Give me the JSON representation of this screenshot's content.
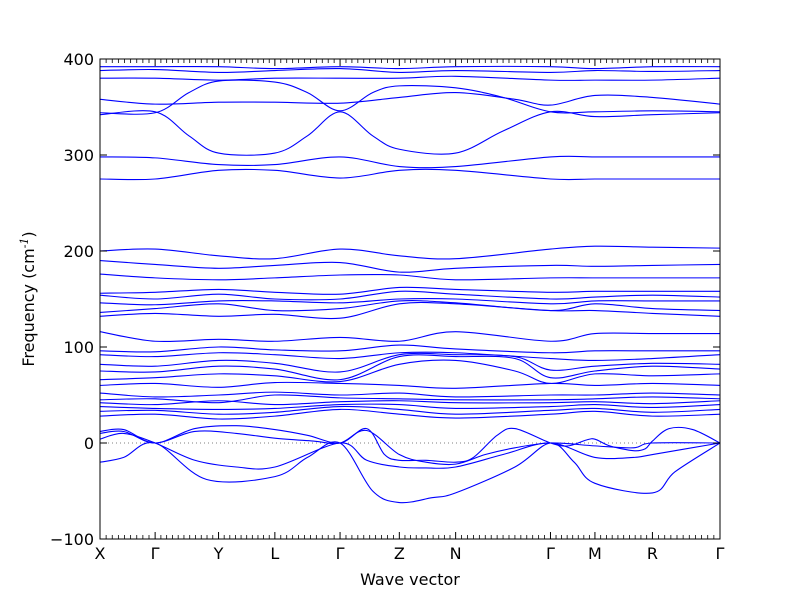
{
  "chart_data": {
    "type": "line",
    "title": "",
    "xlabel": "Wave vector",
    "ylabel": "Frequency (cm",
    "ylabel_unit": "-1",
    "ylabel_close": ")",
    "ylim": [
      -100,
      400
    ],
    "yticks": [
      -100,
      0,
      100,
      200,
      300,
      400
    ],
    "xlim": [
      0,
      10.46
    ],
    "xticks": [
      {
        "label": "X",
        "x": 0
      },
      {
        "label": "Γ",
        "x": 0.93
      },
      {
        "label": "Y",
        "x": 2.0
      },
      {
        "label": "L",
        "x": 2.95
      },
      {
        "label": "Γ",
        "x": 4.05
      },
      {
        "label": "Z",
        "x": 5.05
      },
      {
        "label": "N",
        "x": 6.0
      },
      {
        "label": "Γ",
        "x": 7.6
      },
      {
        "label": "M",
        "x": 8.35
      },
      {
        "label": "R",
        "x": 9.32
      },
      {
        "label": "Γ",
        "x": 10.46
      }
    ],
    "zero_line": true,
    "series_color": "#0000ff",
    "legend": "none",
    "series": [
      {
        "x": [
          0,
          0.93,
          2.0,
          2.95,
          4.05,
          5.05,
          6.0,
          7.6,
          8.35,
          9.32,
          10.46
        ],
        "y": [
          0,
          0,
          0,
          0,
          0,
          0,
          0,
          0,
          0,
          0,
          0
        ]
      },
      {
        "x": [
          0,
          0.4,
          0.93,
          1.8,
          2.95,
          3.5,
          4.05,
          4.6,
          5.05,
          5.6,
          6.0,
          7.0,
          7.6,
          8.0,
          8.35,
          9.32,
          9.7,
          10.46
        ],
        "y": [
          -20,
          -15,
          0,
          -38,
          -35,
          -15,
          0,
          -50,
          -62,
          -57,
          -52,
          -25,
          0,
          -20,
          -42,
          -52,
          -30,
          0
        ]
      },
      {
        "x": [
          0,
          0.4,
          0.93,
          1.6,
          2.3,
          2.95,
          4.05,
          4.5,
          5.05,
          5.5,
          6.0,
          6.8,
          7.6,
          8.35,
          9.0,
          9.32,
          10.46
        ],
        "y": [
          4,
          10,
          0,
          -18,
          -25,
          -25,
          0,
          -18,
          -25,
          -26,
          -25,
          -12,
          0,
          -15,
          -15,
          -12,
          0
        ]
      },
      {
        "x": [
          0,
          0.4,
          0.93,
          1.6,
          2.3,
          2.95,
          3.6,
          4.05,
          4.5,
          5.05,
          5.5,
          6.0,
          6.5,
          7.0,
          7.6,
          8.35,
          9.0,
          9.32,
          10.46
        ],
        "y": [
          10,
          12,
          0,
          12,
          10,
          5,
          2,
          0,
          13,
          -12,
          -20,
          -22,
          -12,
          -5,
          0,
          -3,
          -5,
          0,
          0
        ]
      },
      {
        "x": [
          0,
          0.4,
          0.93,
          1.6,
          2.3,
          2.95,
          3.5,
          4.05,
          4.5,
          4.8,
          5.05,
          5.5,
          6.0,
          6.3,
          6.7,
          7.0,
          7.6,
          7.9,
          8.2,
          8.35,
          8.6,
          9.0,
          9.2,
          9.32,
          9.6,
          10.0,
          10.46
        ],
        "y": [
          12,
          14,
          0,
          15,
          18,
          14,
          8,
          0,
          15,
          -12,
          -18,
          -18,
          -20,
          -15,
          8,
          15,
          0,
          -3,
          3,
          4,
          -3,
          -8,
          -6,
          2,
          15,
          14,
          0
        ],
        "stroke": 1
      },
      {
        "x": [
          0,
          0.93,
          2.0,
          2.95,
          4.05,
          5.05,
          6.0,
          7.6,
          8.35,
          9.32,
          10.46
        ],
        "y": [
          28,
          30,
          25,
          28,
          35,
          30,
          26,
          30,
          33,
          28,
          30
        ]
      },
      {
        "x": [
          0,
          0.93,
          2.0,
          2.95,
          4.05,
          5.05,
          6.0,
          7.6,
          8.35,
          9.32,
          10.46
        ],
        "y": [
          33,
          34,
          30,
          32,
          38,
          35,
          30,
          34,
          36,
          32,
          35
        ]
      },
      {
        "x": [
          0,
          0.93,
          2.0,
          2.95,
          4.05,
          5.05,
          6.0,
          7.6,
          8.35,
          9.32,
          10.46
        ],
        "y": [
          38,
          36,
          35,
          36,
          40,
          40,
          36,
          38,
          40,
          37,
          40
        ]
      },
      {
        "x": [
          0,
          0.93,
          2.0,
          2.95,
          4.05,
          5.05,
          6.0,
          7.6,
          8.35,
          9.32,
          10.46
        ],
        "y": [
          42,
          40,
          44,
          40,
          43,
          44,
          42,
          42,
          43,
          41,
          44
        ]
      },
      {
        "x": [
          0,
          0.93,
          2.0,
          2.95,
          4.05,
          5.05,
          6.0,
          7.6,
          8.35,
          9.32,
          10.46
        ],
        "y": [
          45,
          46,
          42,
          50,
          47,
          46,
          45,
          45,
          46,
          48,
          46
        ]
      },
      {
        "x": [
          0,
          0.93,
          2.0,
          2.95,
          4.05,
          5.05,
          6.0,
          7.6,
          8.35,
          9.32,
          10.46
        ],
        "y": [
          52,
          48,
          50,
          53,
          50,
          52,
          48,
          50,
          50,
          52,
          50
        ]
      },
      {
        "x": [
          0,
          0.93,
          2.0,
          2.95,
          4.05,
          5.05,
          6.0,
          7.6,
          8.35,
          9.32,
          10.46
        ],
        "y": [
          60,
          62,
          58,
          63,
          62,
          60,
          57,
          62,
          60,
          62,
          60
        ]
      },
      {
        "x": [
          0,
          0.93,
          2.0,
          2.95,
          4.05,
          5.05,
          6.0,
          7.0,
          7.6,
          8.35,
          9.32,
          10.46
        ],
        "y": [
          66,
          68,
          72,
          70,
          64,
          82,
          86,
          75,
          62,
          72,
          70,
          72
        ]
      },
      {
        "x": [
          0,
          0.93,
          2.0,
          2.95,
          4.05,
          5.05,
          6.0,
          7.0,
          7.6,
          8.35,
          9.32,
          10.46
        ],
        "y": [
          75,
          74,
          80,
          77,
          66,
          90,
          90,
          88,
          68,
          75,
          80,
          77
        ]
      },
      {
        "x": [
          0,
          0.93,
          2.0,
          2.95,
          4.05,
          5.05,
          6.0,
          7.0,
          7.6,
          8.35,
          9.32,
          10.46
        ],
        "y": [
          82,
          80,
          86,
          83,
          74,
          92,
          92,
          90,
          76,
          80,
          83,
          82
        ]
      },
      {
        "x": [
          0,
          0.93,
          2.0,
          2.95,
          4.05,
          5.05,
          6.0,
          7.6,
          8.35,
          9.32,
          10.46
        ],
        "y": [
          92,
          90,
          94,
          92,
          88,
          94,
          94,
          88,
          86,
          88,
          92
        ]
      },
      {
        "x": [
          0,
          0.93,
          2.0,
          2.95,
          4.05,
          5.05,
          6.0,
          7.6,
          8.35,
          9.32,
          10.46
        ],
        "y": [
          96,
          95,
          100,
          97,
          96,
          102,
          98,
          94,
          96,
          96,
          96
        ]
      },
      {
        "x": [
          0,
          0.93,
          2.0,
          2.95,
          4.05,
          5.05,
          6.0,
          7.6,
          8.35,
          9.32,
          10.46
        ],
        "y": [
          116,
          106,
          108,
          106,
          110,
          106,
          116,
          106,
          114,
          114,
          114
        ]
      },
      {
        "x": [
          0,
          0.93,
          2.0,
          2.95,
          4.05,
          5.05,
          6.0,
          7.6,
          8.35,
          9.32,
          10.46
        ],
        "y": [
          132,
          135,
          132,
          134,
          130,
          145,
          145,
          138,
          138,
          135,
          132
        ]
      },
      {
        "x": [
          0,
          0.93,
          2.0,
          2.95,
          4.05,
          5.05,
          6.0,
          7.6,
          8.35,
          9.32,
          10.46
        ],
        "y": [
          136,
          140,
          145,
          138,
          140,
          148,
          146,
          138,
          145,
          140,
          138
        ]
      },
      {
        "x": [
          0,
          0.93,
          2.0,
          2.95,
          4.05,
          5.05,
          6.0,
          7.6,
          8.35,
          9.32,
          10.46
        ],
        "y": [
          146,
          144,
          148,
          148,
          146,
          150,
          150,
          145,
          148,
          148,
          148
        ]
      },
      {
        "x": [
          0,
          0.93,
          2.0,
          2.95,
          4.05,
          5.05,
          6.0,
          7.6,
          8.35,
          9.32,
          10.46
        ],
        "y": [
          154,
          150,
          155,
          150,
          150,
          158,
          155,
          150,
          152,
          154,
          152
        ]
      },
      {
        "x": [
          0,
          0.93,
          2.0,
          2.95,
          4.05,
          5.05,
          6.0,
          7.6,
          8.35,
          9.32,
          10.46
        ],
        "y": [
          156,
          157,
          160,
          157,
          155,
          162,
          160,
          157,
          158,
          158,
          158
        ]
      },
      {
        "x": [
          0,
          0.93,
          2.0,
          2.95,
          4.05,
          5.05,
          6.0,
          7.6,
          8.35,
          9.32,
          10.46
        ],
        "y": [
          176,
          172,
          170,
          172,
          175,
          175,
          170,
          172,
          172,
          172,
          172
        ]
      },
      {
        "x": [
          0,
          0.93,
          2.0,
          2.95,
          4.05,
          5.05,
          6.0,
          7.6,
          8.35,
          9.32,
          10.46
        ],
        "y": [
          190,
          186,
          182,
          185,
          188,
          178,
          182,
          185,
          184,
          185,
          186
        ]
      },
      {
        "x": [
          0,
          0.93,
          2.0,
          2.95,
          4.05,
          5.05,
          6.0,
          7.6,
          8.35,
          9.32,
          10.46
        ],
        "y": [
          200,
          202,
          195,
          192,
          202,
          195,
          192,
          202,
          205,
          204,
          203
        ]
      },
      {
        "x": [
          0,
          0.93,
          2.0,
          2.95,
          4.05,
          5.05,
          6.0,
          7.6,
          8.35,
          9.32,
          10.46
        ],
        "y": [
          275,
          275,
          284,
          284,
          276,
          284,
          284,
          275,
          275,
          275,
          275
        ]
      },
      {
        "x": [
          0,
          0.93,
          2.0,
          2.95,
          4.05,
          5.05,
          6.0,
          7.6,
          8.35,
          9.32,
          10.46
        ],
        "y": [
          298,
          297,
          290,
          290,
          298,
          288,
          288,
          298,
          298,
          298,
          298
        ]
      },
      {
        "x": [
          0,
          0.93,
          1.5,
          2.0,
          2.95,
          3.5,
          4.05,
          4.6,
          5.05,
          6.0,
          6.8,
          7.6,
          8.35,
          9.32,
          10.46
        ],
        "y": [
          342,
          345,
          320,
          302,
          302,
          320,
          345,
          320,
          306,
          302,
          325,
          345,
          340,
          342,
          344
        ]
      },
      {
        "x": [
          0,
          0.93,
          1.5,
          2.0,
          2.95,
          3.5,
          4.05,
          4.6,
          5.05,
          6.0,
          6.8,
          7.6,
          8.35,
          9.32,
          10.46
        ],
        "y": [
          344,
          344,
          365,
          377,
          376,
          365,
          346,
          365,
          372,
          370,
          360,
          345,
          345,
          346,
          345
        ]
      },
      {
        "x": [
          0,
          0.93,
          2.0,
          2.95,
          4.05,
          5.05,
          6.0,
          7.0,
          7.6,
          8.35,
          9.32,
          10.46
        ],
        "y": [
          358,
          353,
          355,
          355,
          354,
          360,
          365,
          358,
          352,
          362,
          360,
          353
        ]
      },
      {
        "x": [
          0,
          0.93,
          2.0,
          2.95,
          4.05,
          5.05,
          6.0,
          7.6,
          8.35,
          9.32,
          10.46
        ],
        "y": [
          380,
          380,
          378,
          380,
          380,
          380,
          382,
          378,
          378,
          378,
          380
        ]
      },
      {
        "x": [
          0,
          0.93,
          2.0,
          2.95,
          4.05,
          5.05,
          6.0,
          7.6,
          8.35,
          9.32,
          10.46
        ],
        "y": [
          388,
          389,
          386,
          388,
          390,
          386,
          388,
          386,
          388,
          387,
          388
        ]
      },
      {
        "x": [
          0,
          0.93,
          2.0,
          2.95,
          4.05,
          5.05,
          6.0,
          7.6,
          8.35,
          9.32,
          10.46
        ],
        "y": [
          392,
          392,
          392,
          390,
          392,
          390,
          392,
          392,
          390,
          392,
          392
        ]
      }
    ]
  }
}
